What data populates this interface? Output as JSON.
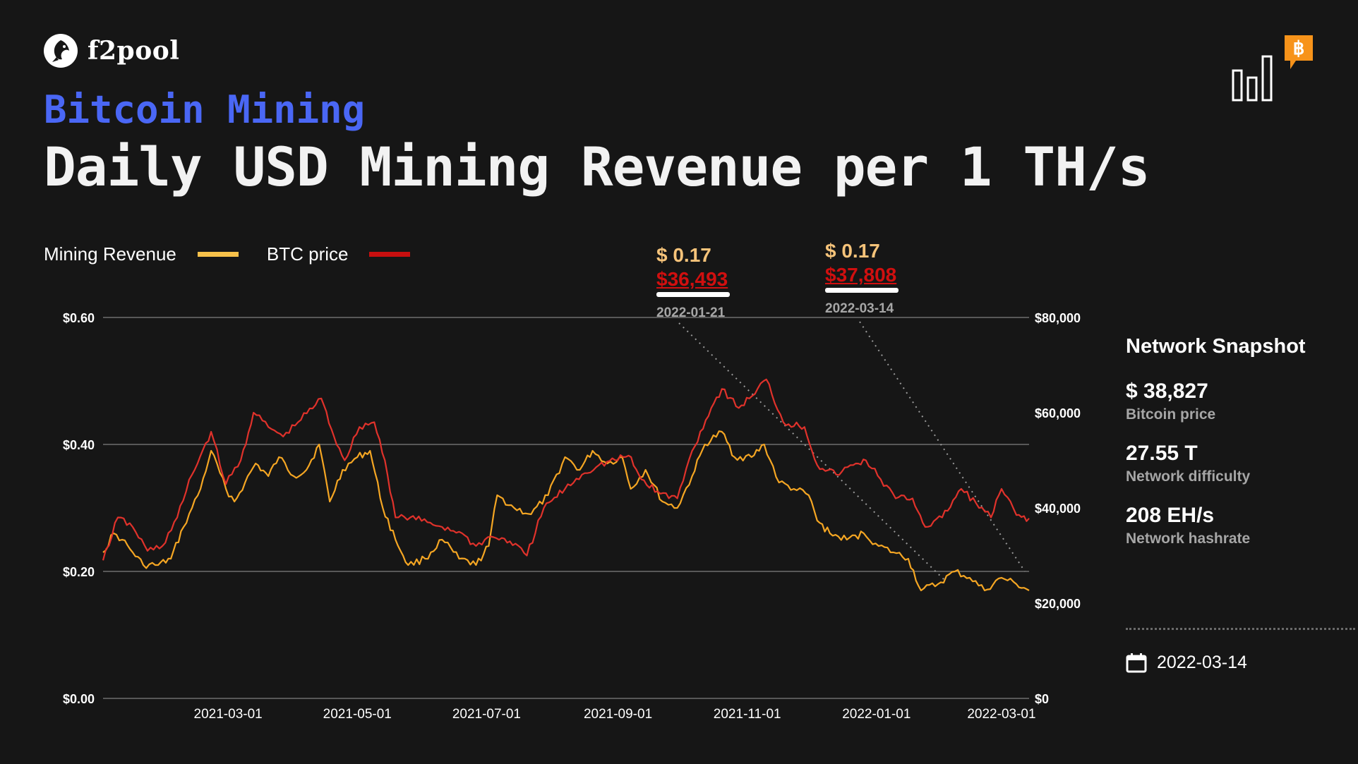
{
  "brand": {
    "name": "f2pool"
  },
  "header": {
    "subtitle": "Bitcoin Mining",
    "title": "Daily USD Mining Revenue per 1 TH/s"
  },
  "colors": {
    "revenue": "#f5a623",
    "price": "#e0322b",
    "accent": "#4a67f5",
    "bitcoin": "#f7931a"
  },
  "legend": {
    "revenue_label": "Mining Revenue",
    "price_label": "BTC price"
  },
  "callouts": [
    {
      "revenue": "$ 0.17",
      "price": "$36,493",
      "date": "2022-01-21"
    },
    {
      "revenue": "$ 0.17",
      "price": "$37,808",
      "date": "2022-03-14"
    }
  ],
  "snapshot": {
    "title": "Network Snapshot",
    "items": [
      {
        "value": "$ 38,827",
        "label": "Bitcoin price"
      },
      {
        "value": "27.55 T",
        "label": "Network difficulty"
      },
      {
        "value": "208 EH/s",
        "label": "Network hashrate"
      }
    ],
    "date": "2022-03-14"
  },
  "chart_data": {
    "type": "line",
    "x_range": [
      "2021-01-01",
      "2022-03-14"
    ],
    "x_ticks": [
      "2021-03-01",
      "2021-05-01",
      "2021-07-01",
      "2021-09-01",
      "2021-11-01",
      "2022-01-01",
      "2022-03-01"
    ],
    "y_left": {
      "ticks": [
        0.0,
        0.2,
        0.4,
        0.6
      ],
      "tick_labels": [
        "$0.00",
        "$0.20",
        "$0.40",
        "$0.60"
      ],
      "range": [
        0,
        0.6
      ]
    },
    "y_right": {
      "ticks": [
        0,
        20000,
        40000,
        60000,
        80000
      ],
      "tick_labels": [
        "$0",
        "$20,000",
        "$40,000",
        "$60,000",
        "$80,000"
      ],
      "range": [
        0,
        80000
      ]
    },
    "grid": "horizontal",
    "legend_position": "top-left",
    "series": [
      {
        "name": "Mining Revenue",
        "axis": "left",
        "points": [
          [
            "2021-01-01",
            0.23
          ],
          [
            "2021-01-06",
            0.26
          ],
          [
            "2021-01-10",
            0.25
          ],
          [
            "2021-01-15",
            0.23
          ],
          [
            "2021-01-20",
            0.21
          ],
          [
            "2021-01-27",
            0.21
          ],
          [
            "2021-02-02",
            0.22
          ],
          [
            "2021-02-08",
            0.27
          ],
          [
            "2021-02-12",
            0.3
          ],
          [
            "2021-02-16",
            0.33
          ],
          [
            "2021-02-21",
            0.39
          ],
          [
            "2021-02-28",
            0.33
          ],
          [
            "2021-03-04",
            0.31
          ],
          [
            "2021-03-09",
            0.34
          ],
          [
            "2021-03-14",
            0.37
          ],
          [
            "2021-03-20",
            0.35
          ],
          [
            "2021-03-25",
            0.38
          ],
          [
            "2021-04-01",
            0.35
          ],
          [
            "2021-04-07",
            0.36
          ],
          [
            "2021-04-13",
            0.4
          ],
          [
            "2021-04-18",
            0.31
          ],
          [
            "2021-04-24",
            0.36
          ],
          [
            "2021-05-01",
            0.38
          ],
          [
            "2021-05-07",
            0.39
          ],
          [
            "2021-05-13",
            0.3
          ],
          [
            "2021-05-19",
            0.25
          ],
          [
            "2021-05-25",
            0.21
          ],
          [
            "2021-06-02",
            0.22
          ],
          [
            "2021-06-10",
            0.25
          ],
          [
            "2021-06-18",
            0.22
          ],
          [
            "2021-06-26",
            0.21
          ],
          [
            "2021-07-02",
            0.24
          ],
          [
            "2021-07-06",
            0.32
          ],
          [
            "2021-07-14",
            0.3
          ],
          [
            "2021-07-22",
            0.29
          ],
          [
            "2021-07-30",
            0.32
          ],
          [
            "2021-08-07",
            0.38
          ],
          [
            "2021-08-14",
            0.36
          ],
          [
            "2021-08-20",
            0.39
          ],
          [
            "2021-08-27",
            0.37
          ],
          [
            "2021-09-03",
            0.38
          ],
          [
            "2021-09-07",
            0.33
          ],
          [
            "2021-09-14",
            0.36
          ],
          [
            "2021-09-22",
            0.31
          ],
          [
            "2021-09-29",
            0.3
          ],
          [
            "2021-10-06",
            0.35
          ],
          [
            "2021-10-12",
            0.4
          ],
          [
            "2021-10-20",
            0.42
          ],
          [
            "2021-10-26",
            0.38
          ],
          [
            "2021-11-03",
            0.38
          ],
          [
            "2021-11-09",
            0.4
          ],
          [
            "2021-11-16",
            0.34
          ],
          [
            "2021-11-23",
            0.33
          ],
          [
            "2021-11-30",
            0.32
          ],
          [
            "2021-12-04",
            0.28
          ],
          [
            "2021-12-10",
            0.26
          ],
          [
            "2021-12-18",
            0.25
          ],
          [
            "2021-12-26",
            0.26
          ],
          [
            "2022-01-02",
            0.24
          ],
          [
            "2022-01-09",
            0.23
          ],
          [
            "2022-01-16",
            0.22
          ],
          [
            "2022-01-22",
            0.17
          ],
          [
            "2022-01-30",
            0.18
          ],
          [
            "2022-02-07",
            0.2
          ],
          [
            "2022-02-14",
            0.19
          ],
          [
            "2022-02-21",
            0.17
          ],
          [
            "2022-03-01",
            0.19
          ],
          [
            "2022-03-08",
            0.18
          ],
          [
            "2022-03-14",
            0.17
          ]
        ]
      },
      {
        "name": "BTC price",
        "axis": "right",
        "points": [
          [
            "2021-01-01",
            29000
          ],
          [
            "2021-01-08",
            38000
          ],
          [
            "2021-01-15",
            36000
          ],
          [
            "2021-01-22",
            31000
          ],
          [
            "2021-01-29",
            32000
          ],
          [
            "2021-02-05",
            38000
          ],
          [
            "2021-02-12",
            47000
          ],
          [
            "2021-02-21",
            56000
          ],
          [
            "2021-02-28",
            45000
          ],
          [
            "2021-03-07",
            50000
          ],
          [
            "2021-03-13",
            60000
          ],
          [
            "2021-03-20",
            57000
          ],
          [
            "2021-03-27",
            55000
          ],
          [
            "2021-04-03",
            58000
          ],
          [
            "2021-04-14",
            63000
          ],
          [
            "2021-04-20",
            55000
          ],
          [
            "2021-04-25",
            50000
          ],
          [
            "2021-05-02",
            57000
          ],
          [
            "2021-05-09",
            58000
          ],
          [
            "2021-05-14",
            50000
          ],
          [
            "2021-05-19",
            38000
          ],
          [
            "2021-05-26",
            38000
          ],
          [
            "2021-06-03",
            37000
          ],
          [
            "2021-06-10",
            36000
          ],
          [
            "2021-06-18",
            35000
          ],
          [
            "2021-06-26",
            32000
          ],
          [
            "2021-07-03",
            34000
          ],
          [
            "2021-07-12",
            33000
          ],
          [
            "2021-07-20",
            30000
          ],
          [
            "2021-07-28",
            40000
          ],
          [
            "2021-08-07",
            44000
          ],
          [
            "2021-08-15",
            47000
          ],
          [
            "2021-08-23",
            49000
          ],
          [
            "2021-09-06",
            51000
          ],
          [
            "2021-09-12",
            46000
          ],
          [
            "2021-09-21",
            43000
          ],
          [
            "2021-09-29",
            42000
          ],
          [
            "2021-10-06",
            52000
          ],
          [
            "2021-10-15",
            61000
          ],
          [
            "2021-10-20",
            65000
          ],
          [
            "2021-10-28",
            61000
          ],
          [
            "2021-11-02",
            63000
          ],
          [
            "2021-11-10",
            67000
          ],
          [
            "2021-11-18",
            58000
          ],
          [
            "2021-11-28",
            57000
          ],
          [
            "2021-12-04",
            49000
          ],
          [
            "2021-12-13",
            47000
          ],
          [
            "2021-12-21",
            49000
          ],
          [
            "2021-12-27",
            50000
          ],
          [
            "2022-01-03",
            46000
          ],
          [
            "2022-01-10",
            42000
          ],
          [
            "2022-01-18",
            42000
          ],
          [
            "2022-01-24",
            36000
          ],
          [
            "2022-02-01",
            38000
          ],
          [
            "2022-02-10",
            44000
          ],
          [
            "2022-02-17",
            41000
          ],
          [
            "2022-02-24",
            38000
          ],
          [
            "2022-03-01",
            44000
          ],
          [
            "2022-03-08",
            38500
          ],
          [
            "2022-03-14",
            37808
          ]
        ]
      }
    ]
  }
}
